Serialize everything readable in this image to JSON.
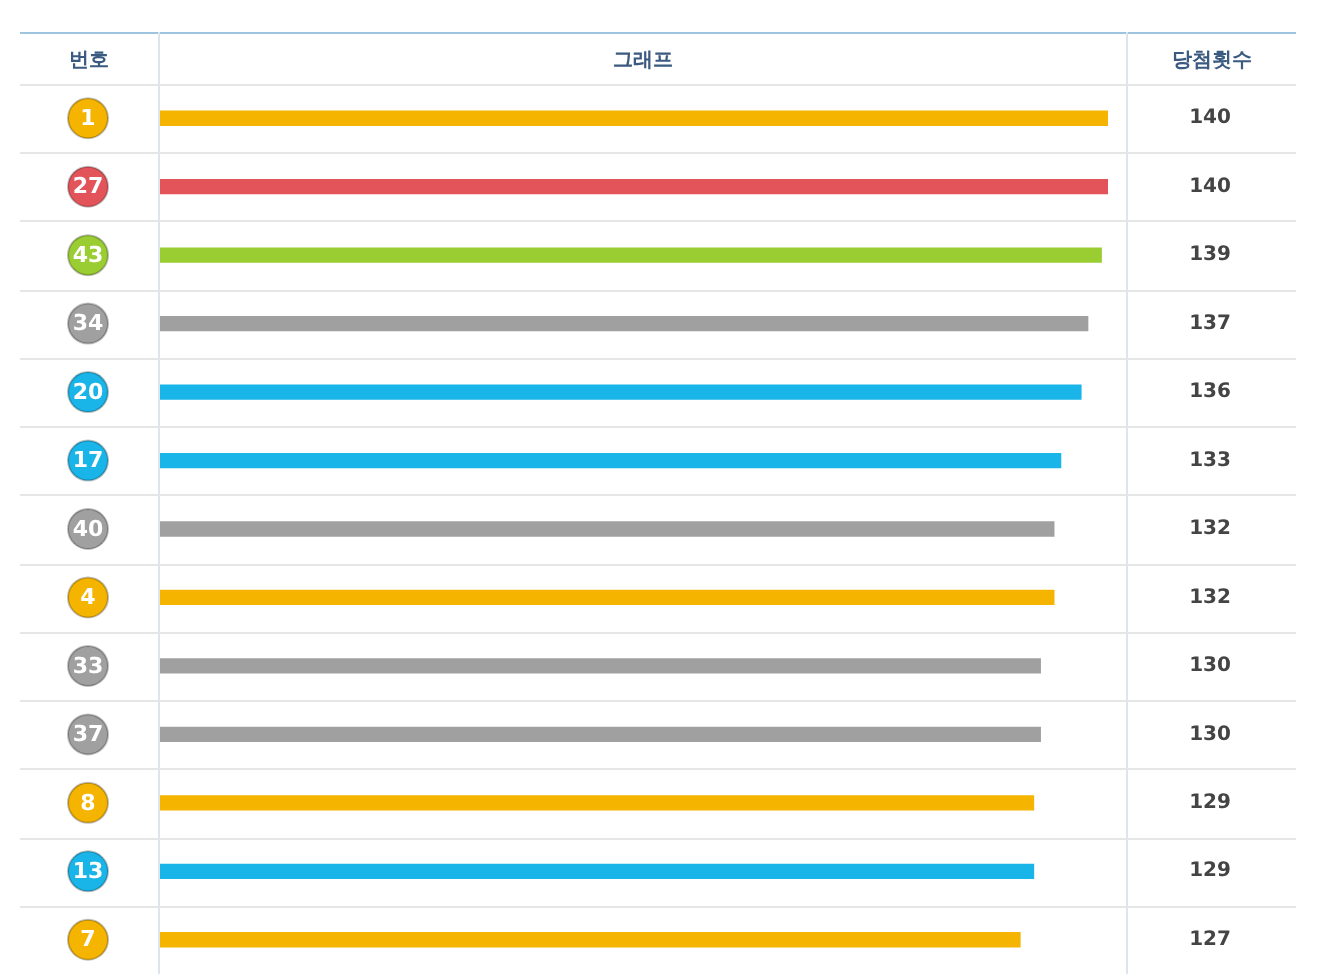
{
  "chart_data": {
    "type": "bar",
    "orientation": "horizontal",
    "ylabel": "번호",
    "title": "그래프",
    "annotations": [
      "당첨횟수"
    ],
    "categories": [
      "1",
      "27",
      "43",
      "34",
      "20",
      "17",
      "40",
      "4",
      "33",
      "37",
      "8",
      "13",
      "7"
    ],
    "values": [
      140,
      140,
      139,
      137,
      136,
      133,
      132,
      132,
      130,
      130,
      129,
      129,
      127
    ],
    "colors": [
      "#f4b400",
      "#e2545a",
      "#9acd32",
      "#a0a0a0",
      "#19b4e8",
      "#19b4e8",
      "#a0a0a0",
      "#f4b400",
      "#a0a0a0",
      "#a0a0a0",
      "#f4b400",
      "#19b4e8",
      "#f4b400"
    ],
    "data_labels": true,
    "grid": "y"
  }
}
